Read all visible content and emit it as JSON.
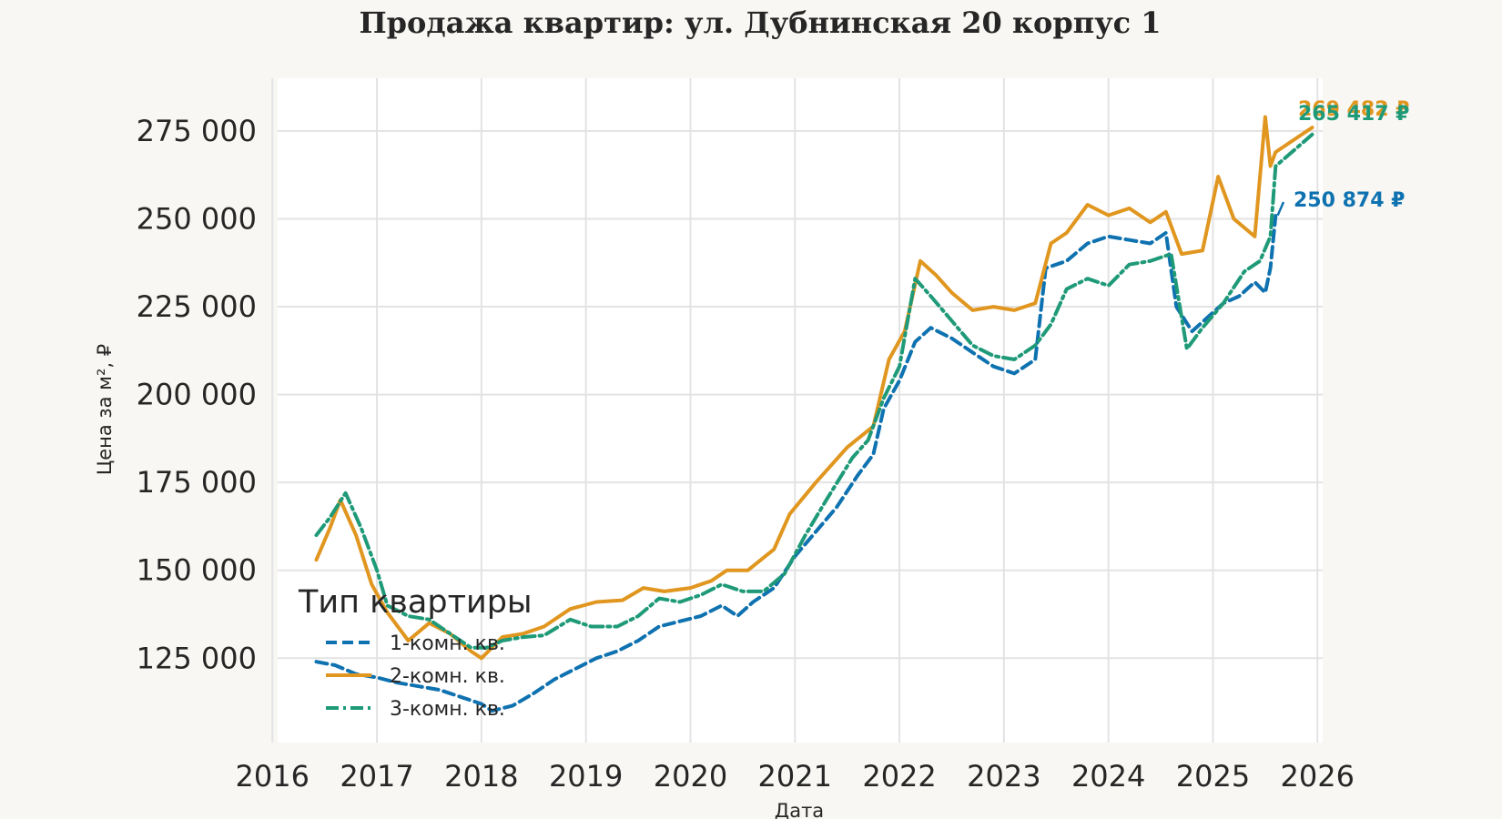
{
  "chart_data": {
    "type": "line",
    "title": "Продажа квартир: ул. Дубнинская 20 корпус 1",
    "xlabel": "Дата",
    "ylabel": "Цена за м², ₽",
    "xlim": [
      2016.05,
      2026.05
    ],
    "ylim": [
      101000,
      290000
    ],
    "x_ticks": [
      2016,
      2017,
      2018,
      2019,
      2020,
      2021,
      2022,
      2023,
      2024,
      2025,
      2026
    ],
    "x_tick_labels": [
      "2016",
      "2017",
      "2018",
      "2019",
      "2020",
      "2021",
      "2022",
      "2023",
      "2024",
      "2025",
      "2026"
    ],
    "y_ticks": [
      125000,
      150000,
      175000,
      200000,
      225000,
      250000,
      275000
    ],
    "y_tick_labels": [
      "125 000",
      "150 000",
      "175 000",
      "200 000",
      "225 000",
      "250 000",
      "275 000"
    ],
    "grid": true,
    "legend": {
      "title": "Тип квартиры",
      "position": "lower-left"
    },
    "series": [
      {
        "name": "1-комн. кв.",
        "color": "#0f72b0",
        "style": "dashed",
        "points": [
          [
            2016.42,
            124000
          ],
          [
            2016.6,
            123000
          ],
          [
            2016.8,
            120500
          ],
          [
            2017.0,
            119500
          ],
          [
            2017.2,
            118000
          ],
          [
            2017.4,
            117000
          ],
          [
            2017.6,
            116000
          ],
          [
            2017.8,
            114000
          ],
          [
            2018.0,
            112000
          ],
          [
            2018.1,
            110000
          ],
          [
            2018.3,
            111500
          ],
          [
            2018.5,
            115000
          ],
          [
            2018.7,
            119000
          ],
          [
            2018.9,
            122000
          ],
          [
            2019.1,
            125000
          ],
          [
            2019.3,
            127000
          ],
          [
            2019.5,
            130000
          ],
          [
            2019.7,
            134000
          ],
          [
            2019.9,
            135500
          ],
          [
            2020.1,
            137000
          ],
          [
            2020.3,
            140000
          ],
          [
            2020.45,
            137000
          ],
          [
            2020.6,
            141000
          ],
          [
            2020.8,
            145000
          ],
          [
            2021.0,
            154000
          ],
          [
            2021.2,
            161000
          ],
          [
            2021.4,
            168000
          ],
          [
            2021.6,
            177000
          ],
          [
            2021.75,
            183000
          ],
          [
            2021.85,
            196000
          ],
          [
            2022.0,
            204000
          ],
          [
            2022.15,
            215000
          ],
          [
            2022.3,
            219000
          ],
          [
            2022.5,
            216000
          ],
          [
            2022.7,
            212000
          ],
          [
            2022.9,
            208000
          ],
          [
            2023.1,
            206000
          ],
          [
            2023.3,
            210000
          ],
          [
            2023.4,
            236000
          ],
          [
            2023.6,
            238000
          ],
          [
            2023.8,
            243000
          ],
          [
            2024.0,
            245000
          ],
          [
            2024.2,
            244000
          ],
          [
            2024.4,
            243000
          ],
          [
            2024.55,
            246000
          ],
          [
            2024.65,
            225000
          ],
          [
            2024.8,
            218000
          ],
          [
            2024.95,
            222000
          ],
          [
            2025.1,
            226000
          ],
          [
            2025.25,
            228000
          ],
          [
            2025.4,
            232000
          ],
          [
            2025.5,
            229000
          ],
          [
            2025.55,
            236000
          ],
          [
            2025.6,
            250874
          ]
        ]
      },
      {
        "name": "2-комн. кв.",
        "color": "#e0961f",
        "style": "solid",
        "points": [
          [
            2016.42,
            153000
          ],
          [
            2016.55,
            162000
          ],
          [
            2016.65,
            170000
          ],
          [
            2016.8,
            160000
          ],
          [
            2016.95,
            146000
          ],
          [
            2017.1,
            138000
          ],
          [
            2017.3,
            130000
          ],
          [
            2017.5,
            135000
          ],
          [
            2017.7,
            132000
          ],
          [
            2017.9,
            127000
          ],
          [
            2018.0,
            125000
          ],
          [
            2018.2,
            131000
          ],
          [
            2018.4,
            132000
          ],
          [
            2018.6,
            134000
          ],
          [
            2018.85,
            139000
          ],
          [
            2019.1,
            141000
          ],
          [
            2019.35,
            141500
          ],
          [
            2019.55,
            145000
          ],
          [
            2019.75,
            144000
          ],
          [
            2020.0,
            145000
          ],
          [
            2020.2,
            147000
          ],
          [
            2020.35,
            150000
          ],
          [
            2020.55,
            150000
          ],
          [
            2020.8,
            156000
          ],
          [
            2020.95,
            166000
          ],
          [
            2021.2,
            175000
          ],
          [
            2021.5,
            185000
          ],
          [
            2021.75,
            191000
          ],
          [
            2021.9,
            210000
          ],
          [
            2022.05,
            218000
          ],
          [
            2022.2,
            238000
          ],
          [
            2022.35,
            234000
          ],
          [
            2022.5,
            229000
          ],
          [
            2022.7,
            224000
          ],
          [
            2022.9,
            225000
          ],
          [
            2023.1,
            224000
          ],
          [
            2023.3,
            226000
          ],
          [
            2023.45,
            243000
          ],
          [
            2023.6,
            246000
          ],
          [
            2023.8,
            254000
          ],
          [
            2024.0,
            251000
          ],
          [
            2024.2,
            253000
          ],
          [
            2024.4,
            249000
          ],
          [
            2024.55,
            252000
          ],
          [
            2024.7,
            240000
          ],
          [
            2024.9,
            241000
          ],
          [
            2025.05,
            262000
          ],
          [
            2025.2,
            250000
          ],
          [
            2025.4,
            245000
          ],
          [
            2025.5,
            279000
          ],
          [
            2025.55,
            265000
          ],
          [
            2025.6,
            269000
          ],
          [
            2025.95,
            276000
          ]
        ],
        "end_label": "269 482 ₽"
      },
      {
        "name": "3-комн. кв.",
        "color": "#1f9a78",
        "style": "dashdot",
        "points": [
          [
            2016.42,
            160000
          ],
          [
            2016.55,
            165000
          ],
          [
            2016.7,
            172000
          ],
          [
            2016.85,
            162000
          ],
          [
            2017.0,
            150000
          ],
          [
            2017.1,
            140000
          ],
          [
            2017.3,
            137000
          ],
          [
            2017.5,
            136000
          ],
          [
            2017.7,
            132000
          ],
          [
            2017.9,
            128000
          ],
          [
            2018.05,
            128000
          ],
          [
            2018.2,
            130000
          ],
          [
            2018.4,
            131000
          ],
          [
            2018.6,
            131500
          ],
          [
            2018.85,
            136000
          ],
          [
            2019.05,
            134000
          ],
          [
            2019.3,
            134000
          ],
          [
            2019.5,
            137000
          ],
          [
            2019.7,
            142000
          ],
          [
            2019.9,
            141000
          ],
          [
            2020.1,
            143000
          ],
          [
            2020.3,
            146000
          ],
          [
            2020.5,
            144000
          ],
          [
            2020.7,
            144000
          ],
          [
            2020.9,
            149000
          ],
          [
            2021.1,
            160000
          ],
          [
            2021.3,
            170000
          ],
          [
            2021.55,
            182000
          ],
          [
            2021.7,
            187000
          ],
          [
            2021.85,
            199000
          ],
          [
            2022.0,
            208000
          ],
          [
            2022.15,
            233000
          ],
          [
            2022.3,
            228000
          ],
          [
            2022.5,
            221000
          ],
          [
            2022.7,
            214000
          ],
          [
            2022.9,
            211000
          ],
          [
            2023.1,
            210000
          ],
          [
            2023.3,
            214000
          ],
          [
            2023.45,
            220000
          ],
          [
            2023.6,
            230000
          ],
          [
            2023.8,
            233000
          ],
          [
            2024.0,
            231000
          ],
          [
            2024.2,
            237000
          ],
          [
            2024.4,
            238000
          ],
          [
            2024.6,
            240000
          ],
          [
            2024.75,
            213000
          ],
          [
            2024.9,
            219000
          ],
          [
            2025.1,
            226000
          ],
          [
            2025.3,
            235000
          ],
          [
            2025.45,
            238000
          ],
          [
            2025.55,
            245000
          ],
          [
            2025.6,
            265000
          ],
          [
            2025.95,
            274000
          ]
        ],
        "end_label": "265 417 ₽"
      }
    ],
    "end_label_1": "250 874 ₽"
  }
}
